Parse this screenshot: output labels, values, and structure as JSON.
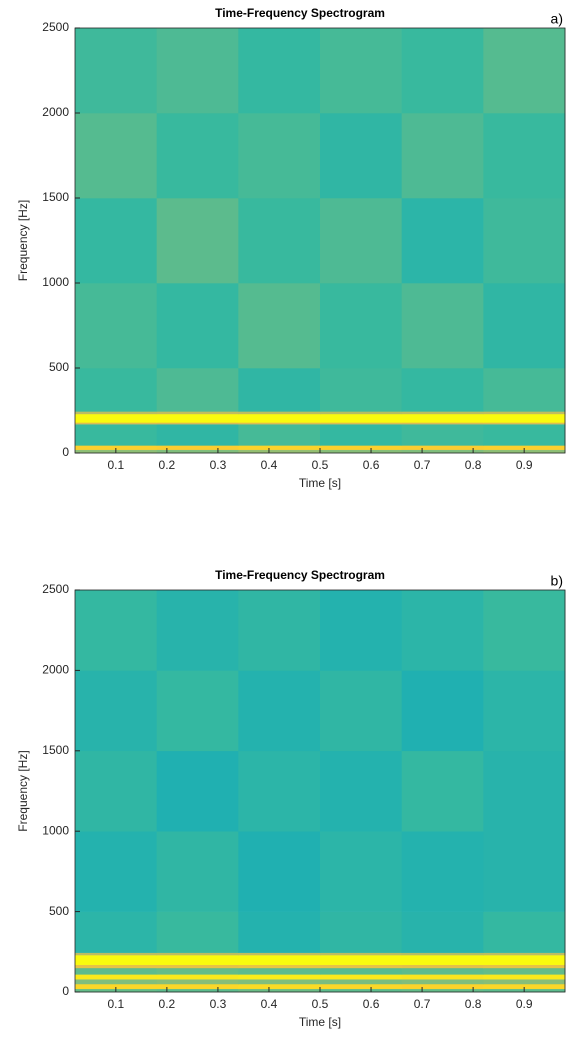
{
  "chart_data": [
    {
      "type": "heatmap",
      "title": "Time-Frequency Spectrogram",
      "panel_label": "a)",
      "x_label": "Time [s]",
      "y_label": "Frequency [Hz]",
      "colormap": "parula",
      "x_edges": [
        0.02,
        0.18,
        0.34,
        0.5,
        0.66,
        0.82,
        0.98
      ],
      "y_edges": [
        0,
        20,
        45,
        170,
        180,
        230,
        245,
        500,
        1000,
        1500,
        2000,
        2500
      ],
      "values": [
        [
          0.62,
          0.6,
          0.63,
          0.61,
          0.6,
          0.62
        ],
        [
          0.88,
          0.87,
          0.89,
          0.88,
          0.87,
          0.88
        ],
        [
          0.5,
          0.48,
          0.52,
          0.49,
          0.51,
          0.5
        ],
        [
          0.76,
          0.75,
          0.77,
          0.76,
          0.75,
          0.76
        ],
        [
          1.0,
          1.0,
          1.0,
          1.0,
          1.0,
          1.0
        ],
        [
          0.7,
          0.71,
          0.7,
          0.69,
          0.7,
          0.71
        ],
        [
          0.5,
          0.53,
          0.48,
          0.51,
          0.49,
          0.52
        ],
        [
          0.52,
          0.49,
          0.54,
          0.5,
          0.53,
          0.48
        ],
        [
          0.49,
          0.55,
          0.5,
          0.53,
          0.47,
          0.51
        ],
        [
          0.54,
          0.5,
          0.52,
          0.48,
          0.53,
          0.5
        ],
        [
          0.51,
          0.53,
          0.49,
          0.52,
          0.5,
          0.54
        ]
      ],
      "xlim": [
        0.02,
        0.98
      ],
      "ylim": [
        0,
        2500
      ],
      "xticks": [
        0.1,
        0.2,
        0.3,
        0.4,
        0.5,
        0.6,
        0.7,
        0.8,
        0.9
      ],
      "yticks": [
        0,
        500,
        1000,
        1500,
        2000,
        2500
      ]
    },
    {
      "type": "heatmap",
      "title": "Time-Frequency Spectrogram",
      "panel_label": "b)",
      "x_label": "Time [s]",
      "y_label": "Frequency [Hz]",
      "colormap": "parula",
      "x_edges": [
        0.02,
        0.18,
        0.34,
        0.5,
        0.66,
        0.82,
        0.98
      ],
      "y_edges": [
        0,
        20,
        50,
        80,
        110,
        150,
        170,
        230,
        245,
        500,
        1000,
        1500,
        2000,
        2500
      ],
      "values": [
        [
          0.56,
          0.55,
          0.57,
          0.55,
          0.56,
          0.55
        ],
        [
          0.9,
          0.9,
          0.91,
          0.9,
          0.89,
          0.9
        ],
        [
          0.6,
          0.61,
          0.6,
          0.59,
          0.6,
          0.61
        ],
        [
          0.95,
          0.95,
          0.96,
          0.95,
          0.94,
          0.95
        ],
        [
          0.55,
          0.56,
          0.55,
          0.54,
          0.55,
          0.56
        ],
        [
          0.8,
          0.8,
          0.81,
          0.8,
          0.79,
          0.8
        ],
        [
          1.0,
          1.0,
          1.0,
          1.0,
          1.0,
          1.0
        ],
        [
          0.7,
          0.7,
          0.71,
          0.7,
          0.69,
          0.7
        ],
        [
          0.47,
          0.5,
          0.45,
          0.48,
          0.46,
          0.49
        ],
        [
          0.45,
          0.48,
          0.44,
          0.47,
          0.45,
          0.46
        ],
        [
          0.48,
          0.44,
          0.47,
          0.45,
          0.49,
          0.46
        ],
        [
          0.46,
          0.49,
          0.45,
          0.48,
          0.44,
          0.47
        ],
        [
          0.49,
          0.46,
          0.48,
          0.45,
          0.47,
          0.5
        ]
      ],
      "xlim": [
        0.02,
        0.98
      ],
      "ylim": [
        0,
        2500
      ],
      "xticks": [
        0.1,
        0.2,
        0.3,
        0.4,
        0.5,
        0.6,
        0.7,
        0.8,
        0.9
      ],
      "yticks": [
        0,
        500,
        1000,
        1500,
        2000,
        2500
      ]
    }
  ]
}
